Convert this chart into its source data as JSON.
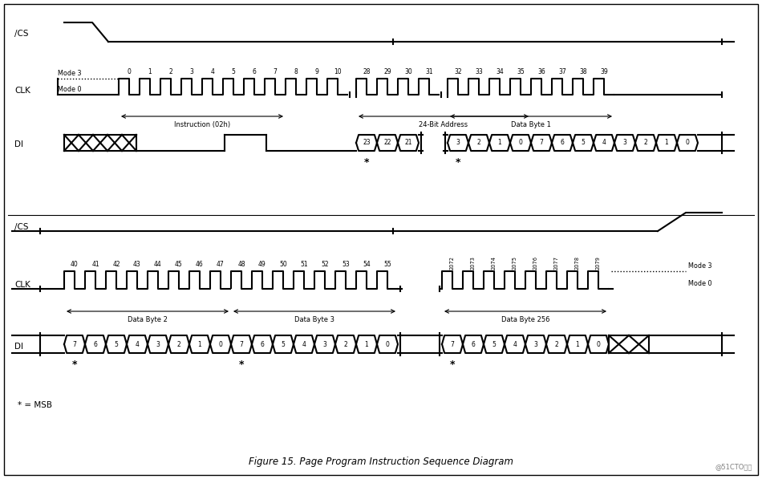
{
  "title": "Figure 15. Page Program Instruction Sequence Diagram",
  "watermark": "@51CTO博客",
  "bg_color": "#ffffff",
  "fig_width": 9.5,
  "fig_height": 5.97,
  "top_cs_labels": [
    "/CS"
  ],
  "top_clk_labels": [
    "CLK",
    "Mode 3",
    "Mode 0"
  ],
  "top_di_label": "DI",
  "bottom_cs_label": "/CS",
  "bottom_clk_label": "CLK",
  "bottom_di_label": "DI",
  "top_tick_labels": [
    "0",
    "1",
    "2",
    "3",
    "4",
    "5",
    "6",
    "7",
    "8",
    "9",
    "10",
    "28",
    "29",
    "30",
    "31",
    "32",
    "33",
    "34",
    "35",
    "36",
    "37",
    "38",
    "39"
  ],
  "bottom_tick_labels_b2": [
    "40",
    "41",
    "42",
    "43",
    "44",
    "45",
    "46",
    "47"
  ],
  "bottom_tick_labels_b3": [
    "48",
    "49",
    "50",
    "51",
    "52",
    "53",
    "54",
    "55"
  ],
  "bottom_tick_labels_b256": [
    "2072",
    "2073",
    "2074",
    "2075",
    "2076",
    "2077",
    "2078",
    "2079"
  ],
  "bracket_labels_top": [
    "Instruction (02h)",
    "24-Bit Address",
    "Data Byte 1"
  ],
  "bracket_labels_bot": [
    "Data Byte 2",
    "Data Byte 3",
    "Data Byte 256"
  ],
  "msb_legend": "* = MSB",
  "top_di_bits_left": [
    "23",
    "22",
    "21"
  ],
  "top_di_addr_right": [
    "3",
    "2",
    "1",
    "0"
  ],
  "top_di_data1": [
    "7",
    "6",
    "5",
    "4",
    "3",
    "2",
    "1",
    "0"
  ],
  "bot_di_b2": [
    "7",
    "6",
    "5",
    "4",
    "3",
    "2",
    "1",
    "0"
  ],
  "bot_di_b3": [
    "7",
    "6",
    "5",
    "4",
    "3",
    "2",
    "1",
    "0"
  ],
  "bot_di_b256": [
    "7",
    "6",
    "5",
    "4",
    "3",
    "2",
    "1",
    "0"
  ]
}
